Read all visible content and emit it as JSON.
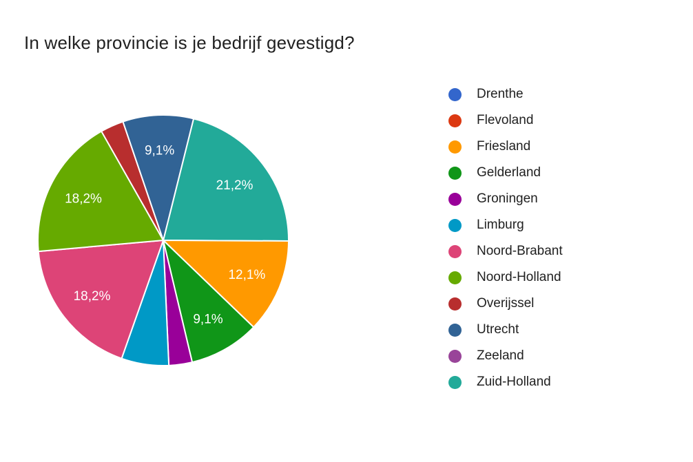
{
  "header": {
    "title": "In welke provincie is je bedrijf gevestigd?"
  },
  "chart_data": {
    "type": "pie",
    "title": "In welke provincie is je bedrijf gevestigd?",
    "unit": "percent",
    "legend_position": "right",
    "direction": "clockwise",
    "start_angle_deg": 14,
    "gap_color": "#ffffff",
    "label_color": "#ffffff",
    "text_color": "#212121",
    "categories": [
      "Drenthe",
      "Flevoland",
      "Friesland",
      "Gelderland",
      "Groningen",
      "Limburg",
      "Noord-Brabant",
      "Noord-Holland",
      "Overijssel",
      "Utrecht",
      "Zeeland",
      "Zuid-Holland"
    ],
    "values": [
      0,
      0,
      12.1,
      9.1,
      3.0,
      6.1,
      18.2,
      18.2,
      3.0,
      9.1,
      0,
      21.2
    ],
    "legend": [
      {
        "label": "Drenthe",
        "color": "#3366cc"
      },
      {
        "label": "Flevoland",
        "color": "#dc3912"
      },
      {
        "label": "Friesland",
        "color": "#ff9900"
      },
      {
        "label": "Gelderland",
        "color": "#109618"
      },
      {
        "label": "Groningen",
        "color": "#990099"
      },
      {
        "label": "Limburg",
        "color": "#0099c6"
      },
      {
        "label": "Noord-Brabant",
        "color": "#dd4477"
      },
      {
        "label": "Noord-Holland",
        "color": "#66aa00"
      },
      {
        "label": "Overijssel",
        "color": "#b82e2e"
      },
      {
        "label": "Utrecht",
        "color": "#316395"
      },
      {
        "label": "Zeeland",
        "color": "#994499"
      },
      {
        "label": "Zuid-Holland",
        "color": "#22aa99"
      }
    ],
    "slices": [
      {
        "name": "Zuid-Holland",
        "value_pct": 21.2,
        "color": "#22aa99",
        "label": "21,2%"
      },
      {
        "name": "Friesland",
        "value_pct": 12.1,
        "color": "#ff9900",
        "label": "12,1%"
      },
      {
        "name": "Gelderland",
        "value_pct": 9.1,
        "color": "#109618",
        "label": "9,1%"
      },
      {
        "name": "Groningen",
        "value_pct": 3.0,
        "color": "#990099",
        "label": null
      },
      {
        "name": "Limburg",
        "value_pct": 6.1,
        "color": "#0099c6",
        "label": null
      },
      {
        "name": "Noord-Brabant",
        "value_pct": 18.2,
        "color": "#dd4477",
        "label": "18,2%"
      },
      {
        "name": "Noord-Holland",
        "value_pct": 18.2,
        "color": "#66aa00",
        "label": "18,2%"
      },
      {
        "name": "Overijssel",
        "value_pct": 3.0,
        "color": "#b82e2e",
        "label": null
      },
      {
        "name": "Utrecht",
        "value_pct": 9.1,
        "color": "#316395",
        "label": "9,1%"
      }
    ]
  }
}
